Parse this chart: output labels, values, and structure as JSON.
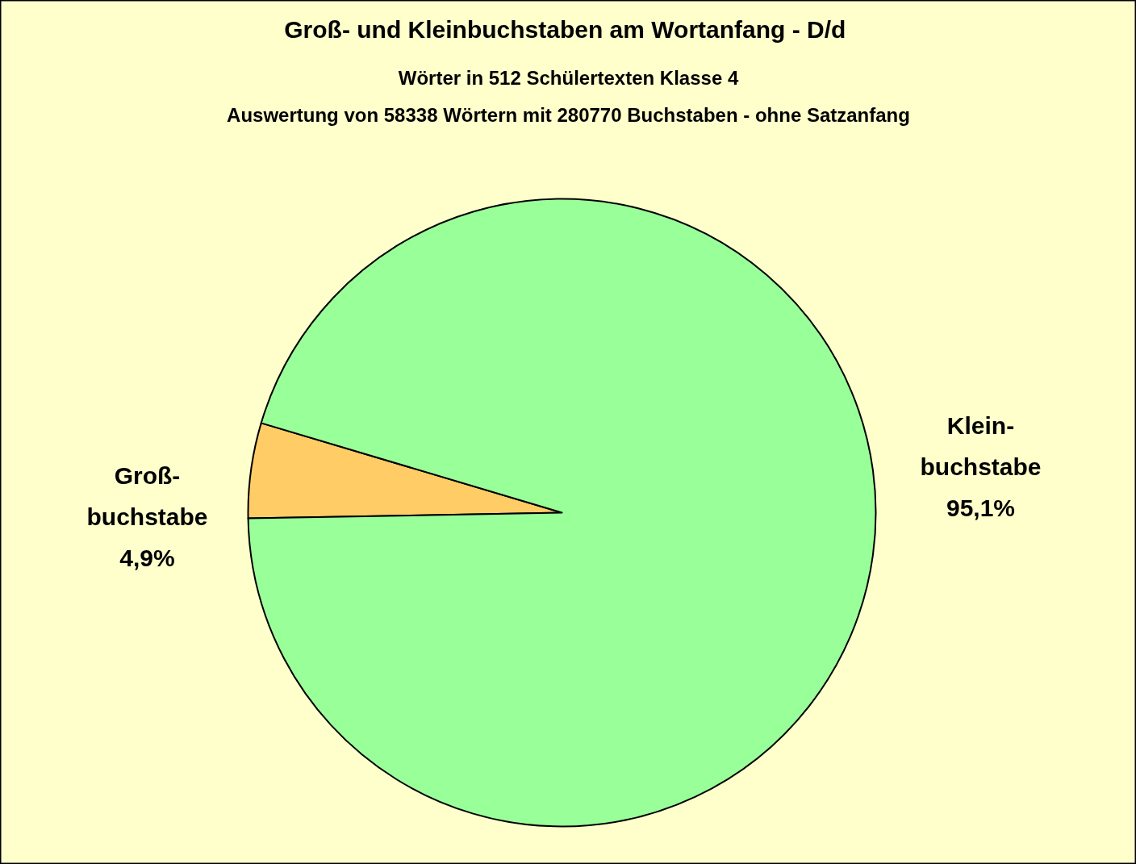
{
  "chart_data": {
    "type": "pie",
    "title": "Groß- und  Kleinbuchstaben am Wortanfang - D/d",
    "subtitle": "Wörter in 512 Schülertexten Klasse 4\nAuswertung von 58338 Wörtern mit 280770 Buchstaben - ohne Satzanfang",
    "categories": [
      "Groß-\nbuchstabe",
      "Klein-\nbuchstabe"
    ],
    "values": [
      4.9,
      95.1
    ],
    "value_labels": [
      "4,9%",
      "95,1%"
    ],
    "colors": [
      "#ffcc66",
      "#99ff99"
    ]
  }
}
